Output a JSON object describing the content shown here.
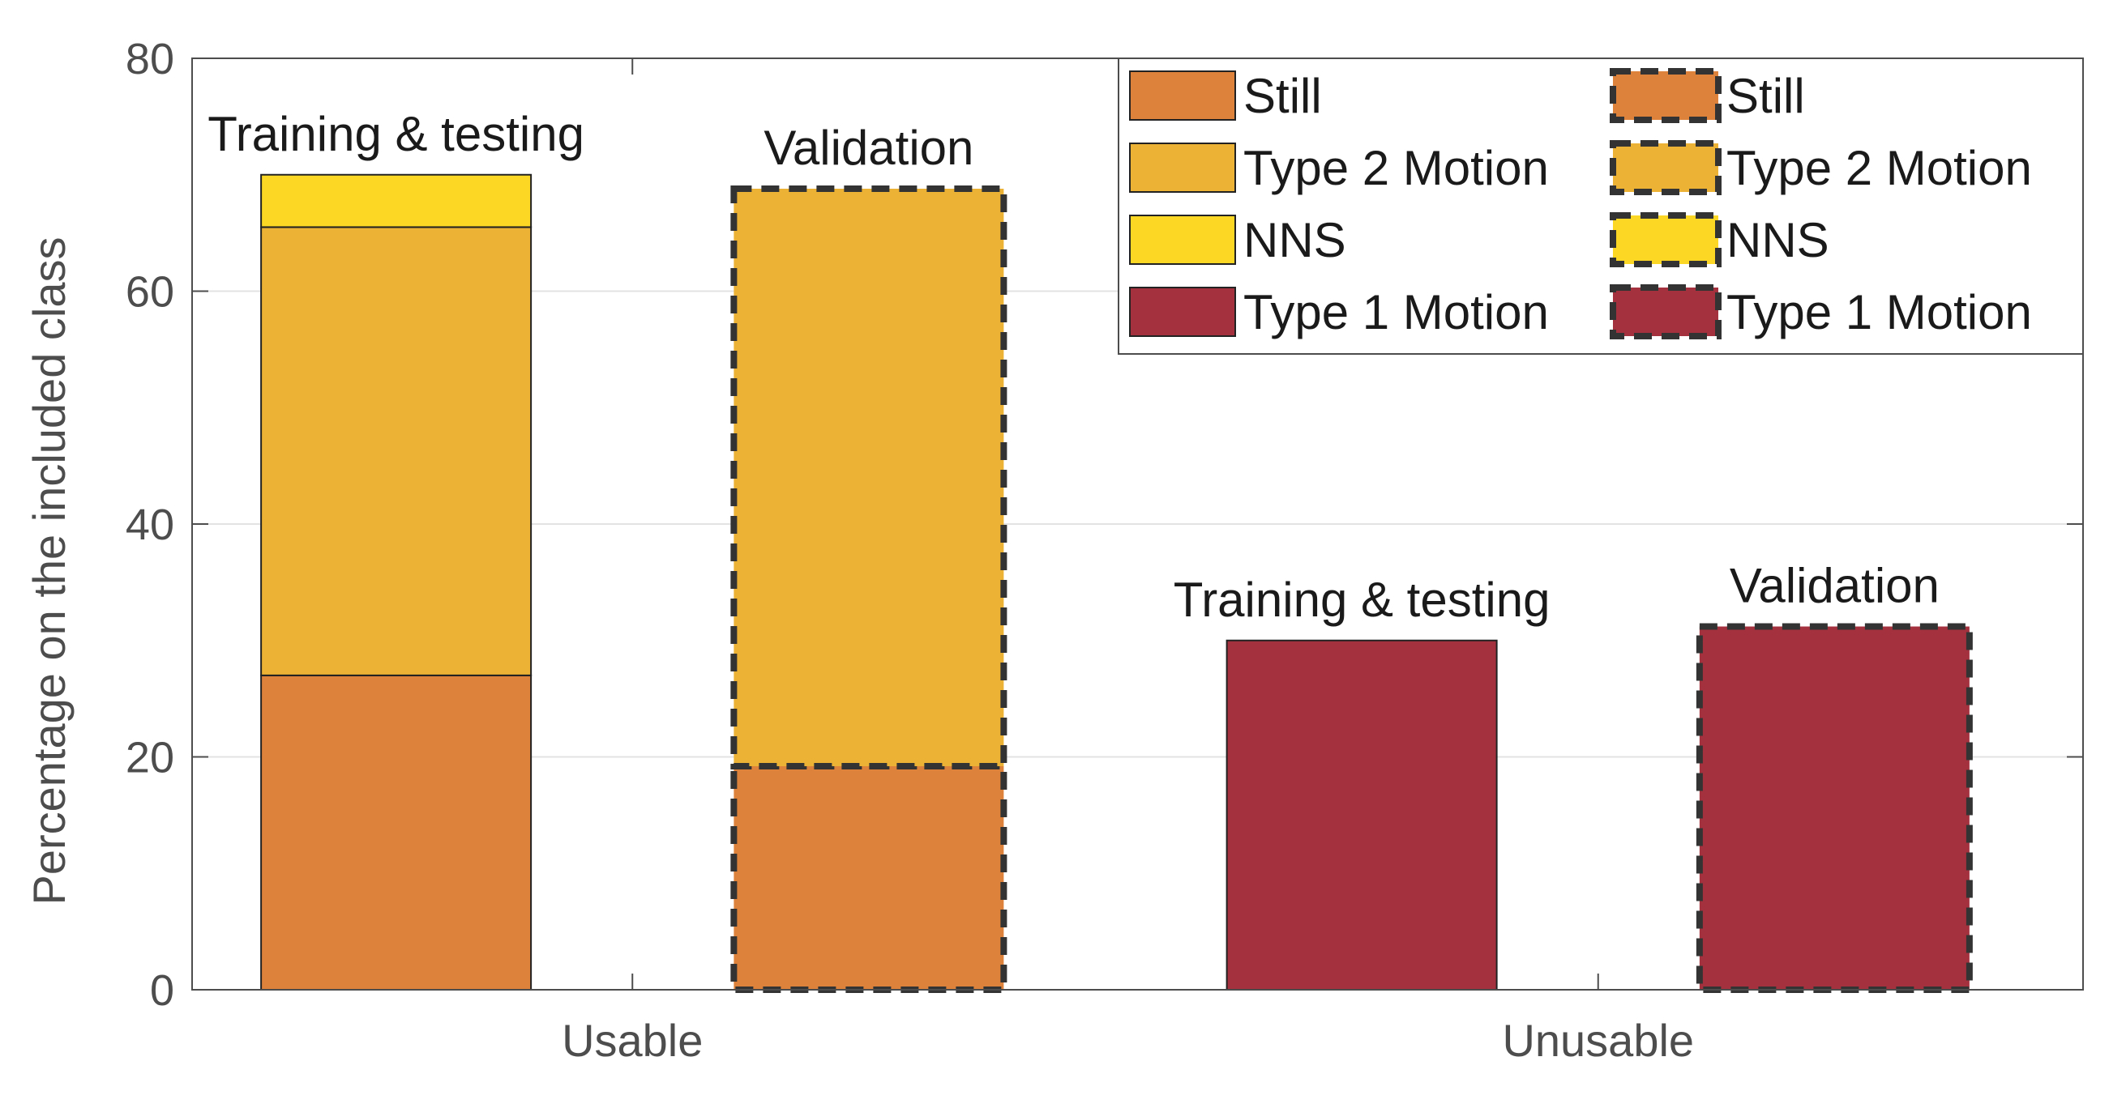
{
  "chart_data": {
    "type": "bar",
    "stacked": true,
    "title": "",
    "xlabel": "",
    "ylabel": "Percentage on the included class",
    "ylim": [
      0,
      80
    ],
    "yticks": [
      0,
      20,
      40,
      60,
      80
    ],
    "grid": true,
    "categories": [
      "Usable",
      "Unusable"
    ],
    "colors": {
      "Still": "#dd823b",
      "Type 2 Motion": "#ebb235",
      "NNS": "#fcd824",
      "Type 1 Motion": "#a4323e"
    },
    "bars": [
      {
        "category": "Usable",
        "label": "Training & testing",
        "style": "solid",
        "segments": [
          {
            "class": "Still",
            "value": 27
          },
          {
            "class": "Type 2 Motion",
            "value": 38.5
          },
          {
            "class": "NNS",
            "value": 4.5
          }
        ]
      },
      {
        "category": "Usable",
        "label": "Validation",
        "style": "dashed",
        "segments": [
          {
            "class": "Still",
            "value": 19.2
          },
          {
            "class": "Type 2 Motion",
            "value": 49.6
          }
        ]
      },
      {
        "category": "Unusable",
        "label": "Training & testing",
        "style": "solid",
        "segments": [
          {
            "class": "Type 1 Motion",
            "value": 30
          }
        ]
      },
      {
        "category": "Unusable",
        "label": "Validation",
        "style": "dashed",
        "segments": [
          {
            "class": "Type 1 Motion",
            "value": 31.2
          }
        ]
      }
    ],
    "legend": {
      "placement": "top-right",
      "columns": [
        {
          "style": "solid",
          "entries": [
            "Still",
            "Type 2 Motion",
            "NNS",
            "Type 1 Motion"
          ]
        },
        {
          "style": "dashed",
          "entries": [
            "Still",
            "Type 2 Motion",
            "NNS",
            "Type 1 Motion"
          ]
        }
      ]
    }
  }
}
